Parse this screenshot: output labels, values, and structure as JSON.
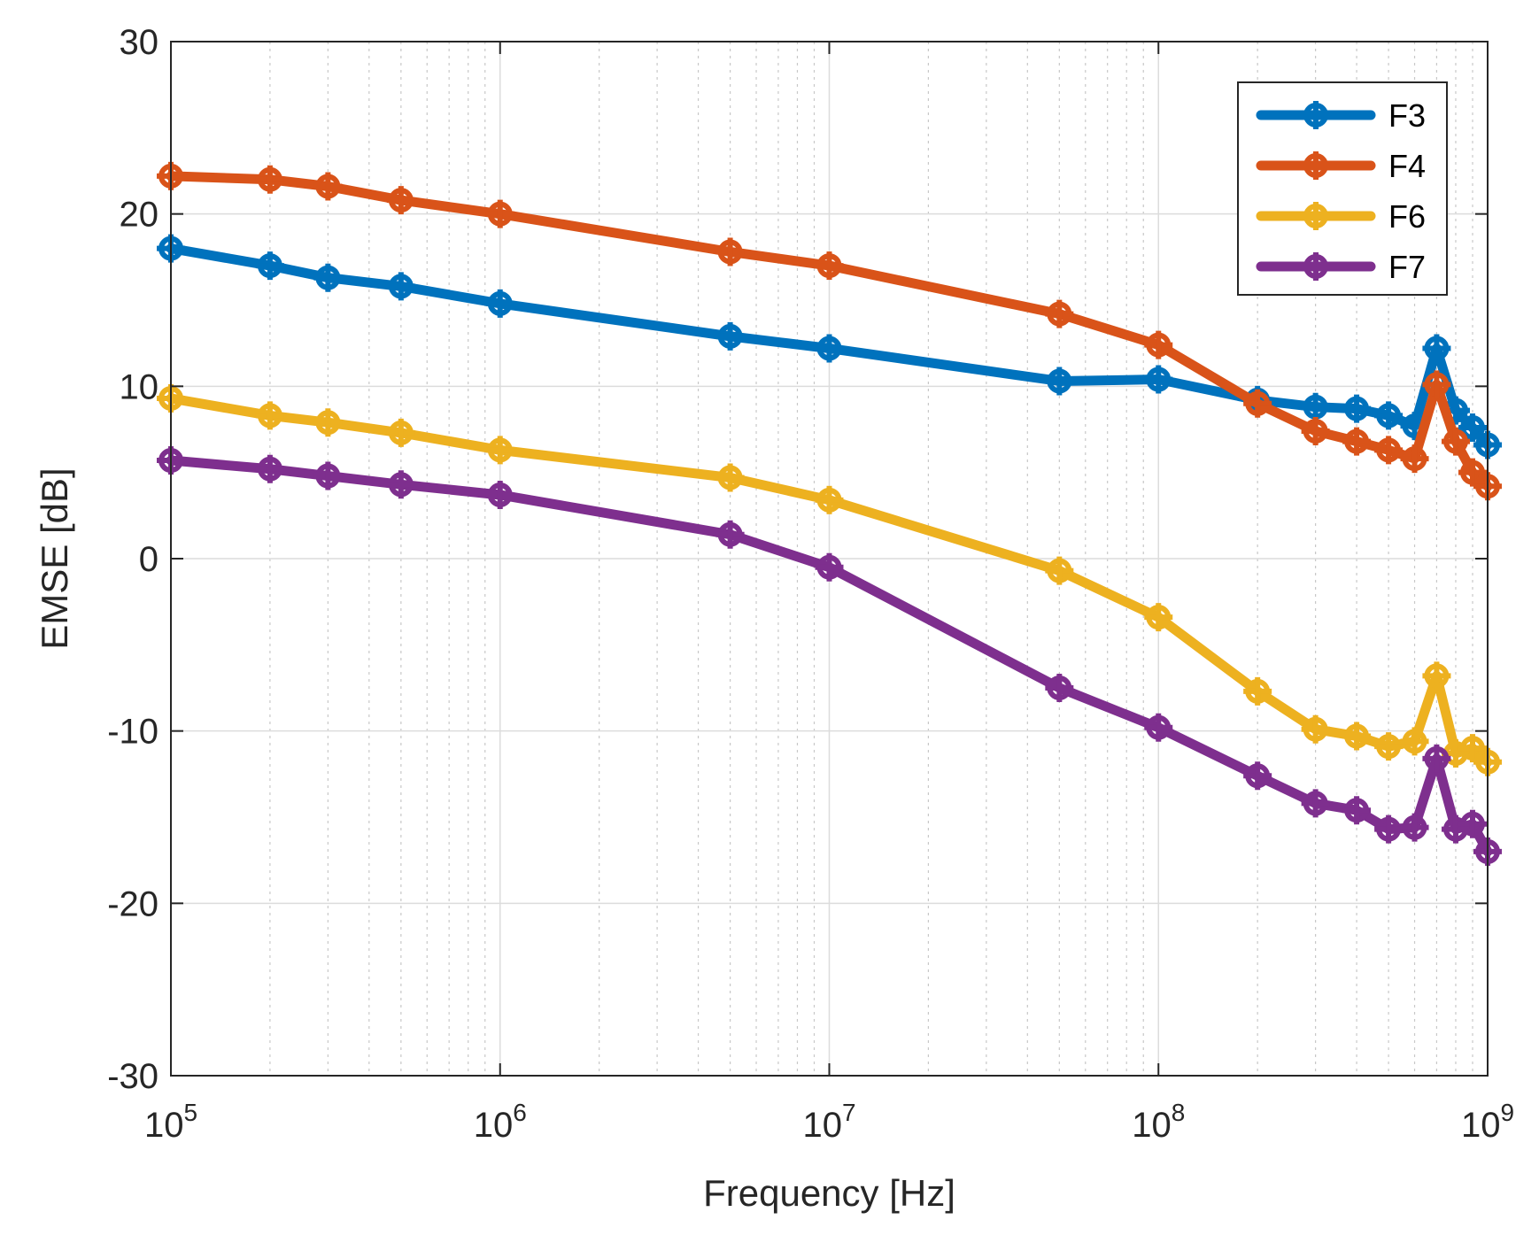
{
  "chart_data": {
    "type": "line",
    "title": "",
    "xlabel": "Frequency [Hz]",
    "ylabel": "EMSE [dB]",
    "xscale": "log",
    "xlim": [
      100000,
      1000000000
    ],
    "ylim": [
      -30,
      30
    ],
    "grid": true,
    "legend_position": "top-right",
    "x_ticks": [
      {
        "value": 100000,
        "base": "10",
        "exp": "5"
      },
      {
        "value": 1000000,
        "base": "10",
        "exp": "6"
      },
      {
        "value": 10000000,
        "base": "10",
        "exp": "7"
      },
      {
        "value": 100000000,
        "base": "10",
        "exp": "8"
      },
      {
        "value": 1000000000,
        "base": "10",
        "exp": "9"
      }
    ],
    "y_ticks": [
      "-30",
      "-20",
      "-10",
      "0",
      "10",
      "20",
      "30"
    ],
    "x": [
      100000,
      200000,
      300000,
      500000,
      1000000,
      5000000,
      10000000,
      50000000,
      100000000,
      200000000,
      300000000,
      400000000,
      500000000,
      600000000,
      700000000,
      800000000,
      900000000,
      1000000000
    ],
    "series": [
      {
        "name": "F3",
        "color": "#0072BD",
        "values": [
          18.0,
          17.0,
          16.3,
          15.8,
          14.8,
          12.9,
          12.2,
          10.3,
          10.4,
          9.2,
          8.8,
          8.7,
          8.3,
          7.7,
          12.2,
          8.6,
          7.6,
          6.6
        ]
      },
      {
        "name": "F4",
        "color": "#D95319",
        "values": [
          22.2,
          22.0,
          21.6,
          20.8,
          20.0,
          17.8,
          17.0,
          14.2,
          12.4,
          9.0,
          7.4,
          6.8,
          6.3,
          5.8,
          10.1,
          6.8,
          5.0,
          4.2
        ]
      },
      {
        "name": "F6",
        "color": "#EDB120",
        "values": [
          9.3,
          8.3,
          7.9,
          7.3,
          6.3,
          4.7,
          3.4,
          -0.7,
          -3.4,
          -7.7,
          -9.9,
          -10.3,
          -10.9,
          -10.6,
          -6.8,
          -11.3,
          -11.0,
          -11.8
        ]
      },
      {
        "name": "F7",
        "color": "#7E2F8E",
        "values": [
          5.7,
          5.2,
          4.8,
          4.3,
          3.7,
          1.4,
          -0.5,
          -7.5,
          -9.8,
          -12.6,
          -14.2,
          -14.6,
          -15.7,
          -15.6,
          -11.6,
          -15.7,
          -15.4,
          -17.0
        ]
      }
    ]
  }
}
